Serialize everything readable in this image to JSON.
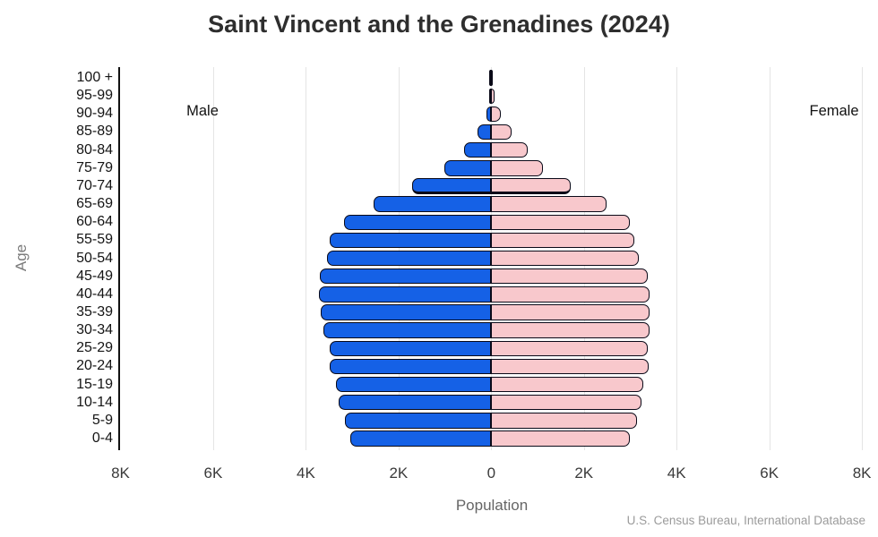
{
  "title": "Saint Vincent and the Grenadines (2024)",
  "source": "U.S. Census Bureau, International Database",
  "chart_data": {
    "type": "bar",
    "subtype": "population-pyramid",
    "title": "Saint Vincent and the Grenadines (2024)",
    "xlabel": "Population",
    "ylabel": "Age",
    "categories": [
      "100 +",
      "95-99",
      "90-94",
      "85-89",
      "80-84",
      "75-79",
      "70-74",
      "65-69",
      "60-64",
      "55-59",
      "50-54",
      "45-49",
      "40-44",
      "35-39",
      "30-34",
      "25-29",
      "20-24",
      "15-19",
      "10-14",
      "5-9",
      "0-4"
    ],
    "series": [
      {
        "name": "Male",
        "side": "left",
        "color": "#1561e6",
        "values": [
          15,
          40,
          100,
          290,
          590,
          1020,
          1700,
          2540,
          3180,
          3480,
          3550,
          3690,
          3710,
          3670,
          3620,
          3490,
          3480,
          3350,
          3300,
          3150,
          3050
        ]
      },
      {
        "name": "Female",
        "side": "right",
        "color": "#f8c8cc",
        "values": [
          30,
          80,
          200,
          430,
          780,
          1120,
          1710,
          2490,
          3000,
          3080,
          3180,
          3370,
          3420,
          3420,
          3420,
          3370,
          3390,
          3290,
          3250,
          3140,
          2990
        ]
      }
    ],
    "x_ticks": [
      "8K",
      "6K",
      "4K",
      "2K",
      "0",
      "2K",
      "4K",
      "6K",
      "8K"
    ],
    "x_tick_values": [
      -8000,
      -6000,
      -4000,
      -2000,
      0,
      2000,
      4000,
      6000,
      8000
    ],
    "xlim": [
      -8000,
      8000
    ],
    "grid": true,
    "legend_position": "inside-top",
    "bar_border_color": "#0a0a18",
    "thick_divider_below": "70-74",
    "source": "U.S. Census Bureau, International Database"
  }
}
